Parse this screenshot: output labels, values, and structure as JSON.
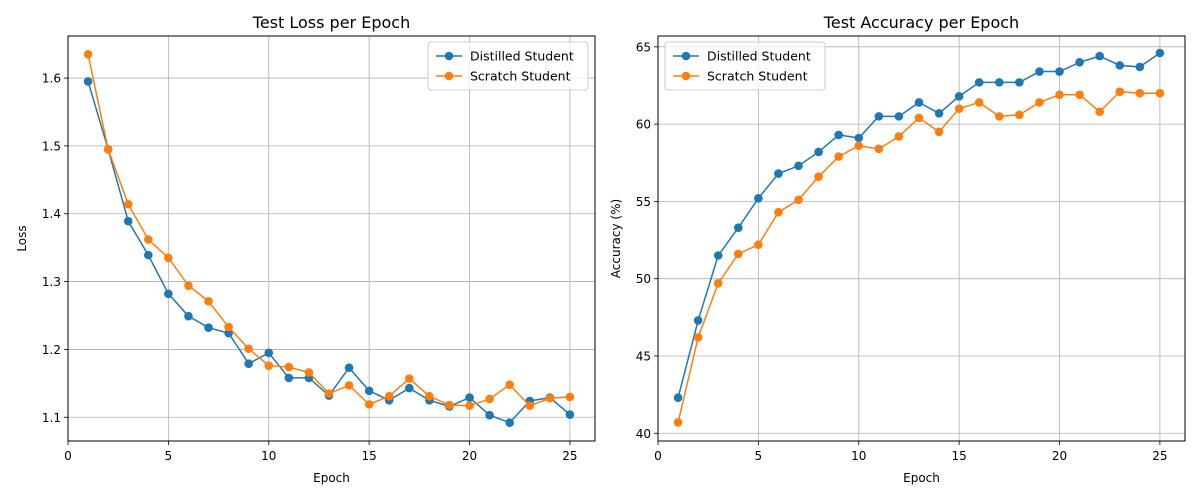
{
  "chart_data": [
    {
      "type": "line",
      "title": "Test Loss per Epoch",
      "xlabel": "Epoch",
      "ylabel": "Loss",
      "xlim": [
        0,
        26.25
      ],
      "ylim": [
        1.065,
        1.662
      ],
      "xticks": [
        0,
        5,
        10,
        15,
        20,
        25
      ],
      "yticks": [
        1.1,
        1.2,
        1.3,
        1.4,
        1.5,
        1.6
      ],
      "ytick_labels": [
        "1.1",
        "1.2",
        "1.3",
        "1.4",
        "1.5",
        "1.6"
      ],
      "grid": true,
      "legend_position": "top-right",
      "x": [
        1,
        2,
        3,
        4,
        5,
        6,
        7,
        8,
        9,
        10,
        11,
        12,
        13,
        14,
        15,
        16,
        17,
        18,
        19,
        20,
        21,
        22,
        23,
        24,
        25
      ],
      "series": [
        {
          "name": "Distilled Student",
          "color": "#1f77b4",
          "values": [
            1.595,
            1.495,
            1.389,
            1.339,
            1.282,
            1.249,
            1.232,
            1.224,
            1.179,
            1.195,
            1.158,
            1.158,
            1.132,
            1.173,
            1.139,
            1.125,
            1.143,
            1.125,
            1.116,
            1.129,
            1.103,
            1.092,
            1.124,
            1.129,
            1.104
          ]
        },
        {
          "name": "Scratch Student",
          "color": "#ff7f0e",
          "values": [
            1.635,
            1.495,
            1.414,
            1.362,
            1.335,
            1.294,
            1.271,
            1.233,
            1.201,
            1.176,
            1.174,
            1.166,
            1.135,
            1.147,
            1.119,
            1.131,
            1.157,
            1.131,
            1.118,
            1.117,
            1.127,
            1.148,
            1.117,
            1.128,
            1.13
          ]
        }
      ]
    },
    {
      "type": "line",
      "title": "Test Accuracy per Epoch",
      "xlabel": "Epoch",
      "ylabel": "Accuracy (%)",
      "xlim": [
        0,
        26.25
      ],
      "ylim": [
        39.5,
        65.7
      ],
      "xticks": [
        0,
        5,
        10,
        15,
        20,
        25
      ],
      "yticks": [
        40,
        45,
        50,
        55,
        60,
        65
      ],
      "ytick_labels": [
        "40",
        "45",
        "50",
        "55",
        "60",
        "65"
      ],
      "grid": true,
      "legend_position": "top-left",
      "x": [
        1,
        2,
        3,
        4,
        5,
        6,
        7,
        8,
        9,
        10,
        11,
        12,
        13,
        14,
        15,
        16,
        17,
        18,
        19,
        20,
        21,
        22,
        23,
        24,
        25
      ],
      "series": [
        {
          "name": "Distilled Student",
          "color": "#1f77b4",
          "values": [
            42.3,
            47.3,
            51.5,
            53.3,
            55.2,
            56.8,
            57.3,
            58.2,
            59.3,
            59.1,
            60.5,
            60.5,
            61.4,
            60.7,
            61.8,
            62.7,
            62.7,
            62.7,
            63.4,
            63.4,
            64.0,
            64.4,
            63.8,
            63.7,
            64.6
          ]
        },
        {
          "name": "Scratch Student",
          "color": "#ff7f0e",
          "values": [
            40.7,
            46.2,
            49.7,
            51.6,
            52.2,
            54.3,
            55.1,
            56.6,
            57.9,
            58.6,
            58.4,
            59.2,
            60.4,
            59.5,
            61.0,
            61.4,
            60.5,
            60.6,
            61.4,
            61.9,
            61.9,
            60.8,
            62.1,
            62.0,
            62.0
          ]
        }
      ]
    }
  ]
}
